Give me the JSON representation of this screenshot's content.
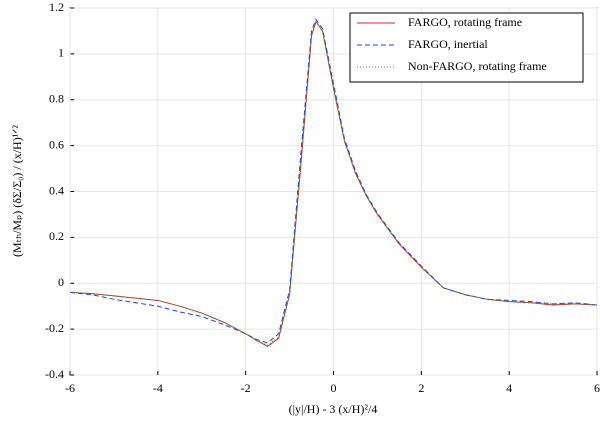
{
  "chart_data": {
    "type": "line",
    "xlabel": "(|y|/H) - 3 (x/H)²/4",
    "ylabel": "(Mₜₕ/Mₚ) (δΣ/Σ₀) / (x/H)¹ᐟ²",
    "x": [
      -6,
      -5.5,
      -5,
      -4.5,
      -4,
      -3.5,
      -3,
      -2.5,
      -2,
      -1.75,
      -1.5,
      -1.25,
      -1,
      -0.75,
      -0.5,
      -0.4,
      -0.25,
      0,
      0.25,
      0.5,
      0.75,
      1,
      1.5,
      2,
      2.5,
      3,
      3.5,
      4,
      4.5,
      5,
      5.5,
      6
    ],
    "series": [
      {
        "name": "FARGO, rotating frame",
        "color": "#d62728",
        "dash": "none",
        "values": [
          -0.04,
          -0.045,
          -0.055,
          -0.065,
          -0.075,
          -0.1,
          -0.13,
          -0.17,
          -0.22,
          -0.25,
          -0.275,
          -0.24,
          -0.05,
          0.5,
          1.08,
          1.14,
          1.1,
          0.85,
          0.62,
          0.48,
          0.38,
          0.3,
          0.17,
          0.07,
          -0.02,
          -0.05,
          -0.07,
          -0.08,
          -0.085,
          -0.095,
          -0.09,
          -0.095
        ]
      },
      {
        "name": "FARGO, inertial",
        "color": "#1f3fff",
        "dash": "5,3",
        "values": [
          -0.04,
          -0.05,
          -0.07,
          -0.085,
          -0.1,
          -0.125,
          -0.145,
          -0.18,
          -0.22,
          -0.245,
          -0.26,
          -0.22,
          -0.03,
          0.55,
          1.1,
          1.15,
          1.11,
          0.87,
          0.63,
          0.49,
          0.385,
          0.305,
          0.175,
          0.075,
          -0.02,
          -0.05,
          -0.07,
          -0.075,
          -0.08,
          -0.09,
          -0.085,
          -0.095
        ]
      },
      {
        "name": "Non-FARGO, rotating frame",
        "color": "#2ca02c",
        "dash": "1,2",
        "values": [
          -0.04,
          -0.045,
          -0.055,
          -0.065,
          -0.075,
          -0.1,
          -0.13,
          -0.17,
          -0.22,
          -0.25,
          -0.27,
          -0.235,
          -0.045,
          0.51,
          1.08,
          1.14,
          1.1,
          0.85,
          0.62,
          0.48,
          0.38,
          0.3,
          0.17,
          0.07,
          -0.02,
          -0.05,
          -0.07,
          -0.08,
          -0.085,
          -0.09,
          -0.09,
          -0.095
        ]
      }
    ],
    "xlim": [
      -6,
      6
    ],
    "xticks": [
      -6,
      -4,
      -2,
      0,
      2,
      4,
      6
    ],
    "ylim": [
      -0.4,
      1.2
    ],
    "yticks": [
      -0.4,
      -0.2,
      0,
      0.2,
      0.4,
      0.6,
      0.8,
      1,
      1.2
    ],
    "grid": true,
    "legend": "upper right"
  }
}
